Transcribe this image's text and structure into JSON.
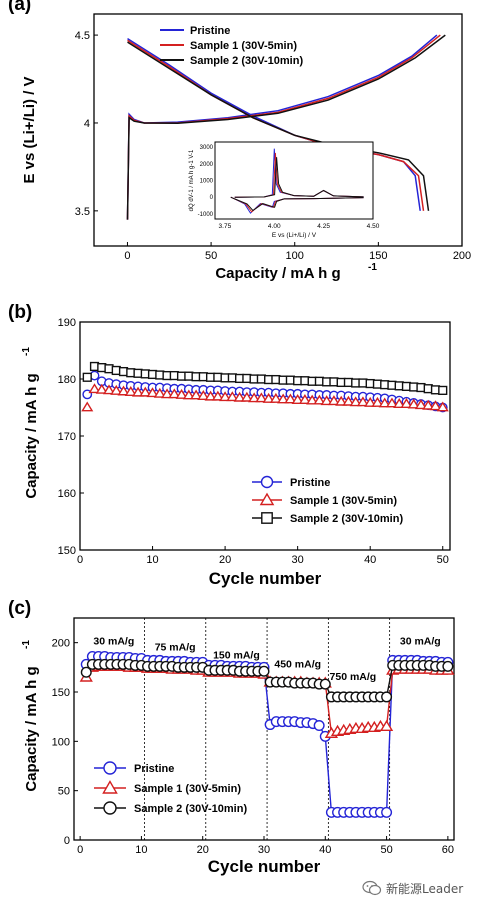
{
  "chart_data": [
    {
      "type": "line",
      "panel_label": "(a)",
      "xlabel": "Capacity / mA h g",
      "xlabel_sup": "-1",
      "ylabel": "E vs (Li+/Li) / V",
      "xlim": [
        -20,
        200
      ],
      "ylim": [
        3.3,
        4.62
      ],
      "xticks": [
        0,
        50,
        100,
        150,
        200
      ],
      "yticks": [
        3.5,
        4.0,
        4.5
      ],
      "legend_position": "top-center",
      "series": [
        {
          "name": "Pristine",
          "color": "#2424d6",
          "charge": [
            [
              0,
              3.45
            ],
            [
              1,
              4.05
            ],
            [
              4,
              4.02
            ],
            [
              10,
              4.0
            ],
            [
              30,
              4.005
            ],
            [
              60,
              4.03
            ],
            [
              90,
              4.07
            ],
            [
              120,
              4.15
            ],
            [
              150,
              4.27
            ],
            [
              170,
              4.38
            ],
            [
              185,
              4.5
            ]
          ],
          "discharge": [
            [
              0,
              4.48
            ],
            [
              25,
              4.33
            ],
            [
              50,
              4.17
            ],
            [
              75,
              4.04
            ],
            [
              100,
              3.93
            ],
            [
              125,
              3.86
            ],
            [
              150,
              3.82
            ],
            [
              165,
              3.78
            ],
            [
              172,
              3.7
            ],
            [
              175,
              3.5
            ]
          ]
        },
        {
          "name": "Sample 1 (30V-5min)",
          "color": "#d42020",
          "charge": [
            [
              0,
              3.45
            ],
            [
              1,
              4.04
            ],
            [
              4,
              4.015
            ],
            [
              10,
              4.0
            ],
            [
              30,
              4.0
            ],
            [
              60,
              4.025
            ],
            [
              90,
              4.06
            ],
            [
              120,
              4.14
            ],
            [
              150,
              4.26
            ],
            [
              170,
              4.37
            ],
            [
              187,
              4.5
            ]
          ],
          "discharge": [
            [
              0,
              4.47
            ],
            [
              25,
              4.32
            ],
            [
              50,
              4.16
            ],
            [
              75,
              4.03
            ],
            [
              100,
              3.93
            ],
            [
              125,
              3.86
            ],
            [
              150,
              3.82
            ],
            [
              165,
              3.78
            ],
            [
              174,
              3.7
            ],
            [
              177,
              3.5
            ]
          ]
        },
        {
          "name": "Sample 2 (30V-10min)",
          "color": "#111111",
          "charge": [
            [
              0,
              3.45
            ],
            [
              1,
              4.03
            ],
            [
              4,
              4.01
            ],
            [
              10,
              4.0
            ],
            [
              30,
              3.998
            ],
            [
              60,
              4.02
            ],
            [
              90,
              4.055
            ],
            [
              120,
              4.13
            ],
            [
              150,
              4.25
            ],
            [
              172,
              4.37
            ],
            [
              190,
              4.5
            ]
          ],
          "discharge": [
            [
              0,
              4.46
            ],
            [
              25,
              4.31
            ],
            [
              50,
              4.16
            ],
            [
              75,
              4.03
            ],
            [
              100,
              3.93
            ],
            [
              125,
              3.87
            ],
            [
              150,
              3.83
            ],
            [
              168,
              3.79
            ],
            [
              177,
              3.7
            ],
            [
              180,
              3.5
            ]
          ]
        }
      ],
      "inset": {
        "xlabel": "E vs (Li+/Li) / V",
        "ylabel": "dQ dV-1 / mA h g-1 V-1",
        "xlim": [
          3.7,
          4.5
        ],
        "ylim": [
          -1300,
          3300
        ],
        "xticks": [
          "3.75",
          "4.00",
          "4.25",
          "4.50"
        ],
        "yticks": [
          "-1000",
          "0",
          "1000",
          "2000",
          "3000"
        ]
      }
    },
    {
      "type": "scatter",
      "panel_label": "(b)",
      "xlabel": "Cycle number",
      "ylabel": "Capacity / mA h g",
      "ylabel_sup": "-1",
      "xlim": [
        0,
        51
      ],
      "ylim": [
        150,
        190
      ],
      "xticks": [
        0,
        10,
        20,
        30,
        40,
        50
      ],
      "yticks": [
        150,
        160,
        170,
        180,
        190
      ],
      "legend_position": "bottom-center",
      "series": [
        {
          "name": "Pristine",
          "marker": "circle",
          "color": "#2424d6",
          "x": [
            1,
            2,
            3,
            4,
            5,
            6,
            7,
            8,
            9,
            10,
            11,
            12,
            13,
            14,
            15,
            16,
            17,
            18,
            19,
            20,
            21,
            22,
            23,
            24,
            25,
            26,
            27,
            28,
            29,
            30,
            31,
            32,
            33,
            34,
            35,
            36,
            37,
            38,
            39,
            40,
            41,
            42,
            43,
            44,
            45,
            46,
            47,
            48,
            49,
            50
          ],
          "values": [
            177.3,
            180.6,
            179.6,
            179.3,
            179.1,
            178.9,
            178.8,
            178.7,
            178.6,
            178.5,
            178.5,
            178.4,
            178.3,
            178.3,
            178.2,
            178.1,
            178.1,
            178.0,
            178.0,
            177.9,
            177.8,
            177.8,
            177.7,
            177.7,
            177.6,
            177.6,
            177.5,
            177.5,
            177.4,
            177.4,
            177.3,
            177.3,
            177.2,
            177.2,
            177.1,
            177.1,
            177.0,
            176.9,
            176.9,
            176.8,
            176.7,
            176.6,
            176.4,
            176.2,
            176.0,
            175.8,
            175.6,
            175.4,
            175.2,
            175.0
          ]
        },
        {
          "name": "Sample 1 (30V-5min)",
          "marker": "triangle",
          "color": "#d42020",
          "x": [
            1,
            2,
            3,
            4,
            5,
            6,
            7,
            8,
            9,
            10,
            11,
            12,
            13,
            14,
            15,
            16,
            17,
            18,
            19,
            20,
            21,
            22,
            23,
            24,
            25,
            26,
            27,
            28,
            29,
            30,
            31,
            32,
            33,
            34,
            35,
            36,
            37,
            38,
            39,
            40,
            41,
            42,
            43,
            44,
            45,
            46,
            47,
            48,
            49,
            50
          ],
          "values": [
            175.0,
            178.2,
            178.1,
            178.0,
            177.9,
            177.8,
            177.7,
            177.6,
            177.6,
            177.5,
            177.4,
            177.3,
            177.3,
            177.2,
            177.1,
            177.1,
            177.0,
            176.9,
            176.9,
            176.8,
            176.8,
            176.7,
            176.7,
            176.6,
            176.6,
            176.5,
            176.5,
            176.4,
            176.4,
            176.3,
            176.3,
            176.2,
            176.2,
            176.1,
            176.1,
            176.0,
            176.0,
            175.9,
            175.9,
            175.8,
            175.8,
            175.7,
            175.7,
            175.6,
            175.6,
            175.5,
            175.4,
            175.3,
            175.2,
            175.0
          ]
        },
        {
          "name": "Sample 2 (30V-10min)",
          "marker": "square",
          "color": "#111111",
          "x": [
            1,
            2,
            3,
            4,
            5,
            6,
            7,
            8,
            9,
            10,
            11,
            12,
            13,
            14,
            15,
            16,
            17,
            18,
            19,
            20,
            21,
            22,
            23,
            24,
            25,
            26,
            27,
            28,
            29,
            30,
            31,
            32,
            33,
            34,
            35,
            36,
            37,
            38,
            39,
            40,
            41,
            42,
            43,
            44,
            45,
            46,
            47,
            48,
            49,
            50
          ],
          "values": [
            180.3,
            182.2,
            182.0,
            181.8,
            181.5,
            181.3,
            181.1,
            181.0,
            180.9,
            180.8,
            180.7,
            180.6,
            180.6,
            180.5,
            180.5,
            180.4,
            180.4,
            180.3,
            180.3,
            180.2,
            180.2,
            180.1,
            180.1,
            180.0,
            180.0,
            179.9,
            179.9,
            179.8,
            179.8,
            179.7,
            179.7,
            179.6,
            179.6,
            179.5,
            179.5,
            179.4,
            179.4,
            179.3,
            179.3,
            179.2,
            179.1,
            179.0,
            178.9,
            178.8,
            178.7,
            178.6,
            178.5,
            178.3,
            178.1,
            178.0
          ]
        }
      ]
    },
    {
      "type": "scatter",
      "panel_label": "(c)",
      "xlabel": "Cycle number",
      "ylabel": "Capacity / mA h g",
      "ylabel_sup": "-1",
      "xlim": [
        -1,
        61
      ],
      "ylim": [
        0,
        225
      ],
      "xticks": [
        0,
        10,
        20,
        30,
        40,
        50,
        60
      ],
      "yticks": [
        0,
        50,
        100,
        150,
        200
      ],
      "legend_position": "bottom-left",
      "rate_dividers": [
        10.5,
        20.5,
        30.5,
        40.5,
        50.5
      ],
      "rate_labels": [
        {
          "text": "30 mA/g",
          "x": 5.5,
          "y": 198
        },
        {
          "text": "75 mA/g",
          "x": 15.5,
          "y": 192
        },
        {
          "text": "150 mA/g",
          "x": 25.5,
          "y": 184
        },
        {
          "text": "450 mA/g",
          "x": 35.5,
          "y": 175
        },
        {
          "text": "750 mA/g",
          "x": 44.5,
          "y": 162
        },
        {
          "text": "30 mA/g",
          "x": 55.5,
          "y": 198
        }
      ],
      "series": [
        {
          "name": "Pristine",
          "marker": "circle",
          "color": "#2424d6",
          "x": [
            1,
            2,
            3,
            4,
            5,
            6,
            7,
            8,
            9,
            10,
            11,
            12,
            13,
            14,
            15,
            16,
            17,
            18,
            19,
            20,
            21,
            22,
            23,
            24,
            25,
            26,
            27,
            28,
            29,
            30,
            31,
            32,
            33,
            34,
            35,
            36,
            37,
            38,
            39,
            40,
            41,
            42,
            43,
            44,
            45,
            46,
            47,
            48,
            49,
            50,
            51,
            52,
            53,
            54,
            55,
            56,
            57,
            58,
            59,
            60
          ],
          "values": [
            178,
            186,
            186,
            186,
            185,
            185,
            185,
            185,
            184,
            184,
            182,
            182,
            182,
            181,
            181,
            181,
            181,
            180,
            180,
            180,
            177,
            177,
            177,
            176,
            176,
            176,
            176,
            175,
            175,
            175,
            117,
            120,
            120,
            120,
            120,
            119,
            119,
            118,
            116,
            105,
            28,
            28,
            28,
            28,
            28,
            28,
            28,
            28,
            28,
            28,
            182,
            182,
            182,
            182,
            182,
            181,
            181,
            181,
            180,
            180
          ]
        },
        {
          "name": "Sample 1 (30V-5min)",
          "marker": "triangle",
          "color": "#d42020",
          "x": [
            1,
            2,
            3,
            4,
            5,
            6,
            7,
            8,
            9,
            10,
            11,
            12,
            13,
            14,
            15,
            16,
            17,
            18,
            19,
            20,
            21,
            22,
            23,
            24,
            25,
            26,
            27,
            28,
            29,
            30,
            31,
            32,
            33,
            34,
            35,
            36,
            37,
            38,
            39,
            40,
            41,
            42,
            43,
            44,
            45,
            46,
            47,
            48,
            49,
            50,
            51,
            52,
            53,
            54,
            55,
            56,
            57,
            58,
            59,
            60
          ],
          "values": [
            165,
            175,
            176,
            176,
            176,
            176,
            176,
            175,
            175,
            175,
            174,
            174,
            174,
            174,
            173,
            173,
            173,
            173,
            172,
            172,
            170,
            170,
            170,
            170,
            170,
            169,
            169,
            169,
            169,
            168,
            160,
            160,
            160,
            160,
            160,
            160,
            159,
            159,
            159,
            159,
            108,
            110,
            111,
            112,
            113,
            113,
            114,
            114,
            115,
            115,
            172,
            173,
            173,
            173,
            173,
            173,
            173,
            172,
            172,
            172
          ]
        },
        {
          "name": "Sample 2 (30V-10min)",
          "marker": "circle-open",
          "color": "#111111",
          "x": [
            1,
            2,
            3,
            4,
            5,
            6,
            7,
            8,
            9,
            10,
            11,
            12,
            13,
            14,
            15,
            16,
            17,
            18,
            19,
            20,
            21,
            22,
            23,
            24,
            25,
            26,
            27,
            28,
            29,
            30,
            31,
            32,
            33,
            34,
            35,
            36,
            37,
            38,
            39,
            40,
            41,
            42,
            43,
            44,
            45,
            46,
            47,
            48,
            49,
            50,
            51,
            52,
            53,
            54,
            55,
            56,
            57,
            58,
            59,
            60
          ],
          "values": [
            170,
            178,
            178,
            178,
            178,
            178,
            178,
            178,
            177,
            177,
            176,
            176,
            176,
            176,
            176,
            175,
            175,
            175,
            175,
            175,
            172,
            172,
            172,
            172,
            172,
            171,
            171,
            171,
            171,
            171,
            160,
            160,
            160,
            160,
            159,
            159,
            159,
            159,
            158,
            158,
            145,
            145,
            145,
            145,
            145,
            145,
            145,
            145,
            145,
            145,
            177,
            177,
            177,
            177,
            177,
            177,
            177,
            176,
            176,
            176
          ]
        }
      ]
    }
  ],
  "watermark": {
    "text": "新能源Leader",
    "icon": "wechat-icon"
  }
}
